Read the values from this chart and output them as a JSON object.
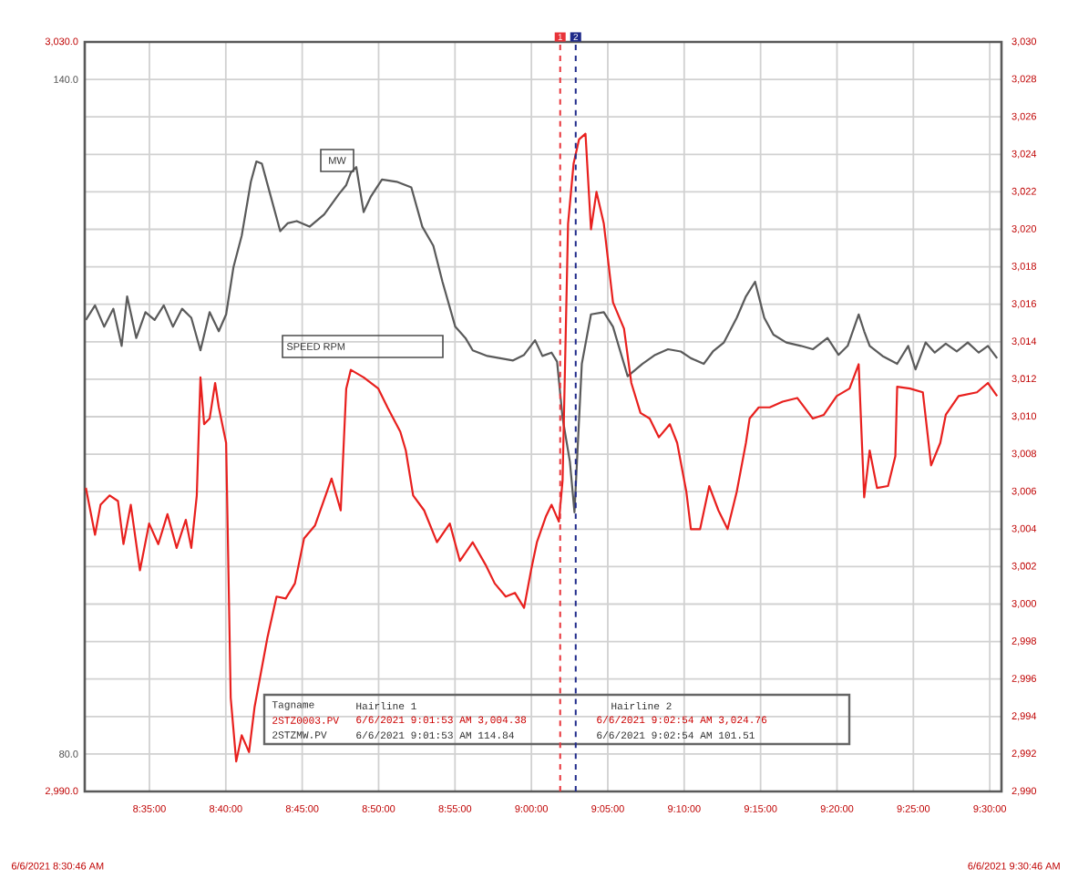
{
  "chart_data": {
    "type": "line",
    "xlim": [
      8.51278,
      9.51278
    ],
    "xticks": [
      {
        "value": 8.58333,
        "label": "8:35:00"
      },
      {
        "value": 8.66667,
        "label": "8:40:00"
      },
      {
        "value": 8.75,
        "label": "8:45:00"
      },
      {
        "value": 8.83333,
        "label": "8:50:00"
      },
      {
        "value": 8.91667,
        "label": "8:55:00"
      },
      {
        "value": 9.0,
        "label": "9:00:00"
      },
      {
        "value": 9.08333,
        "label": "9:05:00"
      },
      {
        "value": 9.16667,
        "label": "9:10:00"
      },
      {
        "value": 9.25,
        "label": "9:15:00"
      },
      {
        "value": 9.33333,
        "label": "9:20:00"
      },
      {
        "value": 9.41667,
        "label": "9:25:00"
      },
      {
        "value": 9.5,
        "label": "9:30:00"
      }
    ],
    "ylim": [
      76.667,
      143.333
    ],
    "yticks": [
      {
        "value": 80,
        "label": "80.0"
      },
      {
        "value": 140,
        "label": "140.0"
      }
    ],
    "y2lim": [
      2990,
      3030
    ],
    "y2ticks": [
      {
        "value": 2990,
        "label": "2,990"
      },
      {
        "value": 2992,
        "label": "2,992"
      },
      {
        "value": 2994,
        "label": "2,994"
      },
      {
        "value": 2996,
        "label": "2,996"
      },
      {
        "value": 2998,
        "label": "2,998"
      },
      {
        "value": 3000,
        "label": "3,000"
      },
      {
        "value": 3002,
        "label": "3,002"
      },
      {
        "value": 3004,
        "label": "3,004"
      },
      {
        "value": 3006,
        "label": "3,006"
      },
      {
        "value": 3008,
        "label": "3,008"
      },
      {
        "value": 3010,
        "label": "3,010"
      },
      {
        "value": 3012,
        "label": "3,012"
      },
      {
        "value": 3014,
        "label": "3,014"
      },
      {
        "value": 3016,
        "label": "3,016"
      },
      {
        "value": 3018,
        "label": "3,018"
      },
      {
        "value": 3020,
        "label": "3,020"
      },
      {
        "value": 3022,
        "label": "3,022"
      },
      {
        "value": 3024,
        "label": "3,024"
      },
      {
        "value": 3026,
        "label": "3,026"
      },
      {
        "value": 3028,
        "label": "3,028"
      },
      {
        "value": 3030,
        "label": "3,030"
      }
    ],
    "y3lim": [
      2990,
      3030
    ],
    "y3ticks": [
      {
        "value": 2990,
        "label": "2,990.0"
      },
      {
        "value": 3030,
        "label": "3,030.0"
      }
    ],
    "grid": true,
    "series": [
      {
        "name": "MW",
        "color": "#5a5a5a",
        "axis": "y",
        "x": [
          8.514,
          8.524,
          8.534,
          8.544,
          8.553,
          8.559,
          8.569,
          8.579,
          8.589,
          8.599,
          8.609,
          8.619,
          8.629,
          8.639,
          8.649,
          8.659,
          8.667,
          8.675,
          8.684,
          8.694,
          8.7,
          8.706,
          8.714,
          8.726,
          8.734,
          8.744,
          8.758,
          8.774,
          8.79,
          8.798,
          8.803,
          8.809,
          8.817,
          8.825,
          8.837,
          8.853,
          8.869,
          8.881,
          8.893,
          8.903,
          8.917,
          8.928,
          8.936,
          8.952,
          8.966,
          8.98,
          8.992,
          9.004,
          9.012,
          9.022,
          9.028,
          9.034,
          9.042,
          9.047,
          9.055,
          9.065,
          9.079,
          9.089,
          9.105,
          9.121,
          9.135,
          9.149,
          9.163,
          9.174,
          9.188,
          9.198,
          9.21,
          9.224,
          9.234,
          9.244,
          9.254,
          9.264,
          9.278,
          9.294,
          9.307,
          9.323,
          9.335,
          9.345,
          9.357,
          9.363,
          9.369,
          9.383,
          9.399,
          9.411,
          9.419,
          9.43,
          9.44,
          9.452,
          9.464,
          9.476,
          9.488,
          9.498,
          9.508
        ],
        "values": [
          118.6,
          119.9,
          118.0,
          119.6,
          116.3,
          120.7,
          117.0,
          119.3,
          118.6,
          119.9,
          118.0,
          119.6,
          118.8,
          115.9,
          119.3,
          117.6,
          119.1,
          123.3,
          126.1,
          130.9,
          132.7,
          132.5,
          130.1,
          126.5,
          127.2,
          127.4,
          126.9,
          128.0,
          129.8,
          130.6,
          131.7,
          132.2,
          128.2,
          129.6,
          131.1,
          130.9,
          130.4,
          126.9,
          125.2,
          122.0,
          118.0,
          117.0,
          115.9,
          115.4,
          115.2,
          115.0,
          115.5,
          116.8,
          115.4,
          115.7,
          114.9,
          109.9,
          106.0,
          101.5,
          114.7,
          119.1,
          119.3,
          118.0,
          113.6,
          114.7,
          115.5,
          116.0,
          115.8,
          115.2,
          114.7,
          115.8,
          116.6,
          118.8,
          120.7,
          122.0,
          118.8,
          117.3,
          116.6,
          116.3,
          116.0,
          117.0,
          115.5,
          116.3,
          119.1,
          117.6,
          116.3,
          115.4,
          114.7,
          116.3,
          114.2,
          116.6,
          115.7,
          116.5,
          115.8,
          116.6,
          115.7,
          116.3,
          115.2
        ]
      },
      {
        "name": "SPEED RPM",
        "color": "#e8201e",
        "axis": "y2",
        "x": [
          8.514,
          8.524,
          8.53,
          8.54,
          8.549,
          8.555,
          8.563,
          8.573,
          8.583,
          8.593,
          8.603,
          8.613,
          8.623,
          8.629,
          8.635,
          8.639,
          8.643,
          8.649,
          8.655,
          8.659,
          8.667,
          8.672,
          8.678,
          8.684,
          8.692,
          8.698,
          8.712,
          8.722,
          8.732,
          8.742,
          8.752,
          8.764,
          8.782,
          8.792,
          8.798,
          8.803,
          8.817,
          8.833,
          8.843,
          8.857,
          8.863,
          8.871,
          8.883,
          8.897,
          8.911,
          8.922,
          8.936,
          8.95,
          8.96,
          8.972,
          8.982,
          8.992,
          9.0,
          9.006,
          9.016,
          9.022,
          9.03,
          9.034,
          9.04,
          9.046,
          9.052,
          9.059,
          9.065,
          9.071,
          9.079,
          9.089,
          9.101,
          9.109,
          9.119,
          9.129,
          9.139,
          9.151,
          9.159,
          9.169,
          9.174,
          9.184,
          9.194,
          9.204,
          9.214,
          9.224,
          9.234,
          9.238,
          9.248,
          9.26,
          9.274,
          9.29,
          9.307,
          9.319,
          9.333,
          9.347,
          9.357,
          9.363,
          9.369,
          9.377,
          9.389,
          9.397,
          9.399,
          9.413,
          9.427,
          9.436,
          9.446,
          9.452,
          9.466,
          9.486,
          9.498,
          9.508
        ],
        "values": [
          3006.2,
          3003.7,
          3005.3,
          3005.8,
          3005.5,
          3003.2,
          3005.3,
          3001.8,
          3004.3,
          3003.2,
          3004.8,
          3003.0,
          3004.5,
          3003.0,
          3005.8,
          3012.1,
          3009.6,
          3009.9,
          3011.8,
          3010.5,
          3008.6,
          2995.0,
          2991.6,
          2993.0,
          2992.1,
          2994.5,
          2998.2,
          3000.4,
          3000.3,
          3001.1,
          3003.5,
          3004.2,
          3006.7,
          3005.0,
          3011.5,
          3012.5,
          3012.1,
          3011.5,
          3010.5,
          3009.2,
          3008.2,
          3005.8,
          3005.0,
          3003.3,
          3004.3,
          3002.3,
          3003.3,
          3002.1,
          3001.1,
          3000.4,
          3000.6,
          2999.8,
          3001.9,
          3003.3,
          3004.7,
          3005.3,
          3004.4,
          3006.6,
          3020.3,
          3023.5,
          3024.8,
          3025.1,
          3020.0,
          3022.0,
          3020.3,
          3016.1,
          3014.7,
          3011.8,
          3010.2,
          3009.9,
          3008.9,
          3009.6,
          3008.6,
          3006.0,
          3004.0,
          3004.0,
          3006.3,
          3005.0,
          3004.0,
          3006.0,
          3008.6,
          3009.9,
          3010.5,
          3010.5,
          3010.8,
          3011.0,
          3009.9,
          3010.1,
          3011.1,
          3011.5,
          3012.8,
          3005.7,
          3008.2,
          3006.2,
          3006.3,
          3007.9,
          3011.6,
          3011.5,
          3011.3,
          3007.4,
          3008.6,
          3010.1,
          3011.1,
          3011.3,
          3011.8,
          3011.1
        ]
      }
    ],
    "ref_lines": [
      {
        "axis": "x",
        "value": 9.03139,
        "color": "#e8343a",
        "line_style": "dashed"
      },
      {
        "axis": "x",
        "value": 9.04833,
        "color": "#1f2a8a",
        "line_style": "dashed"
      }
    ],
    "annotations": [
      {
        "text": "1",
        "x": 9.03139
      },
      {
        "text": "2",
        "x": 9.04833
      },
      "Tagname",
      "Hairline 1",
      "Hairline 2",
      "2STZ0003.PV",
      "6/6/2021 9:01:53 AM 3,004.38",
      "6/6/2021 9:02:54 AM 3,024.76",
      "2STZMW.PV",
      "6/6/2021 9:01:53 AM 114.84",
      "6/6/2021 9:02:54 AM 101.51",
      "6/6/2021 8:30:46 AM",
      "6/6/2021 9:30:46 AM"
    ]
  }
}
